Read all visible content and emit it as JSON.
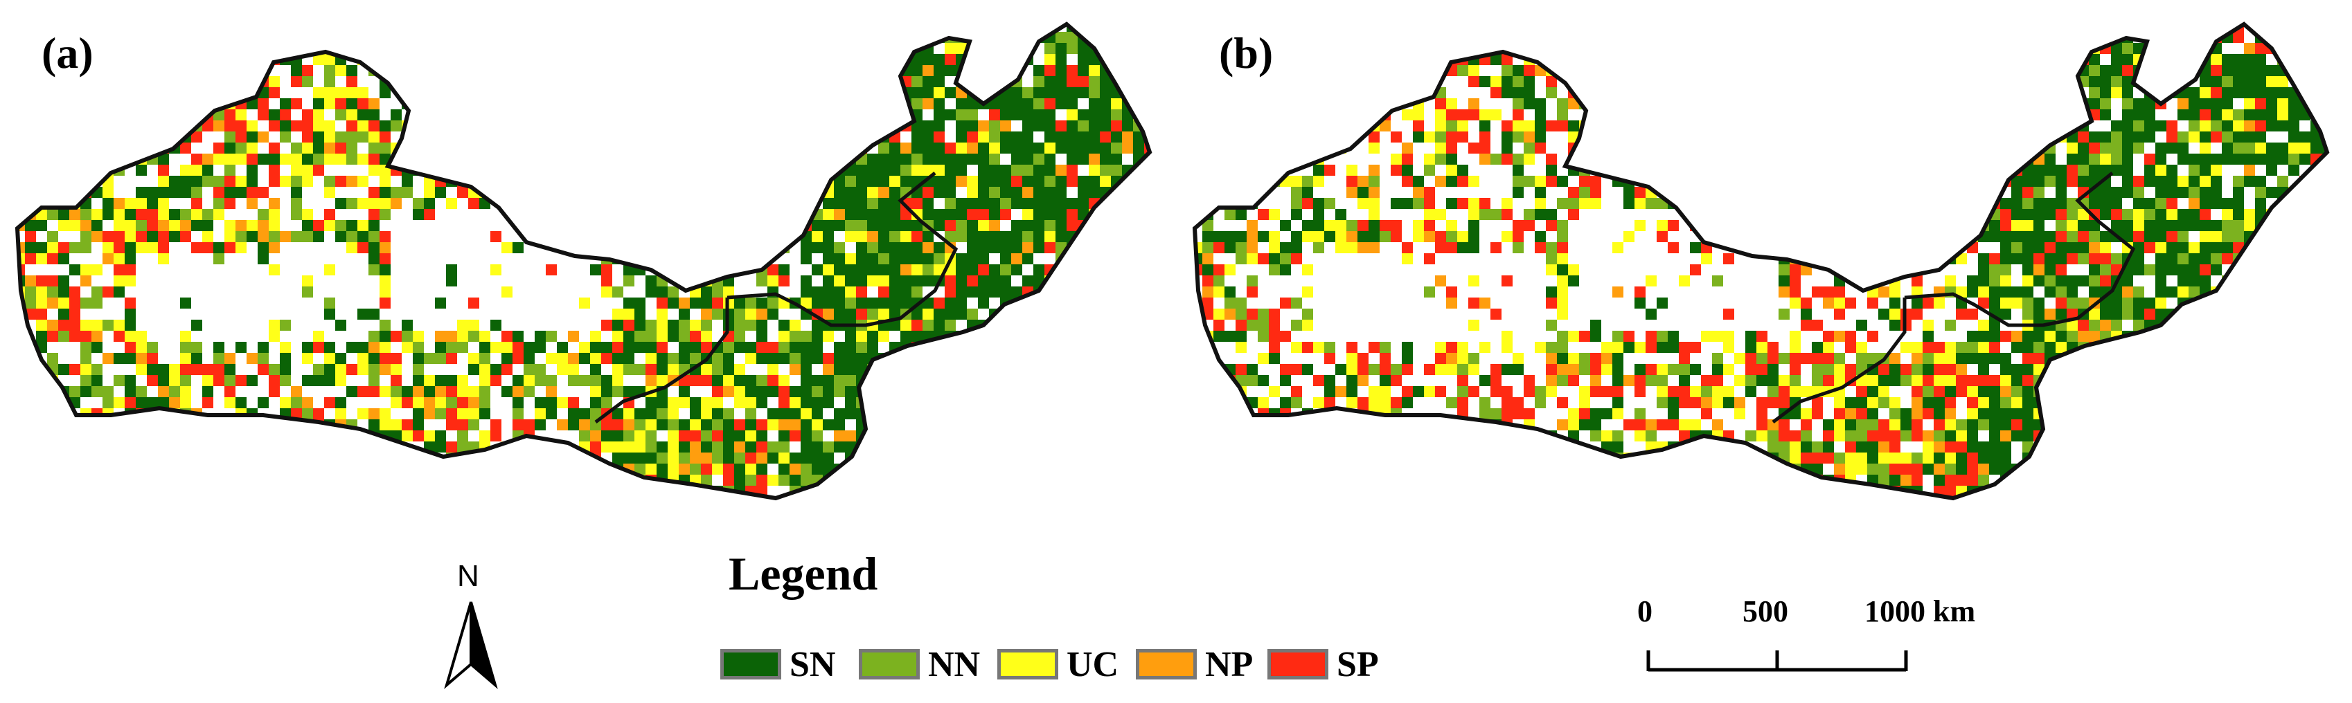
{
  "panels": [
    {
      "label": "(a)"
    },
    {
      "label": "(b)"
    }
  ],
  "north_arrow": {
    "letter": "N"
  },
  "legend": {
    "title": "Legend",
    "items": [
      {
        "code": "SN",
        "color": "#0b6306"
      },
      {
        "code": "NN",
        "color": "#7cb21f"
      },
      {
        "code": "UC",
        "color": "#ffff19"
      },
      {
        "code": "NP",
        "color": "#ff9e0e"
      },
      {
        "code": "SP",
        "color": "#ff2a12"
      }
    ]
  },
  "scale_bar": {
    "labels": [
      "0",
      "500",
      "1000 km"
    ]
  }
}
